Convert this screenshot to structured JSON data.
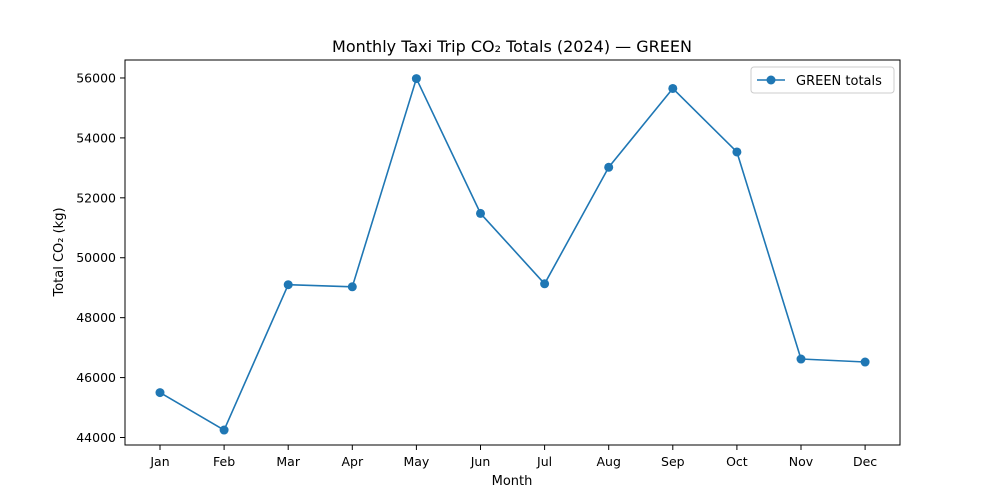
{
  "chart_data": {
    "type": "line",
    "title": "Monthly Taxi Trip CO₂ Totals (2024) — GREEN",
    "xlabel": "Month",
    "ylabel": "Total CO₂ (kg)",
    "categories": [
      "Jan",
      "Feb",
      "Mar",
      "Apr",
      "May",
      "Jun",
      "Jul",
      "Aug",
      "Sep",
      "Oct",
      "Nov",
      "Dec"
    ],
    "series": [
      {
        "name": "GREEN totals",
        "color": "#1f77b4",
        "values": [
          45500,
          44250,
          49100,
          49030,
          55980,
          51480,
          49130,
          53020,
          55650,
          53530,
          46620,
          46520
        ]
      }
    ],
    "ylim": [
      43750,
      56600
    ],
    "yticks": [
      "44000",
      "46000",
      "48000",
      "50000",
      "52000",
      "54000",
      "56000"
    ],
    "grid": false,
    "legend_position": "top-right"
  }
}
